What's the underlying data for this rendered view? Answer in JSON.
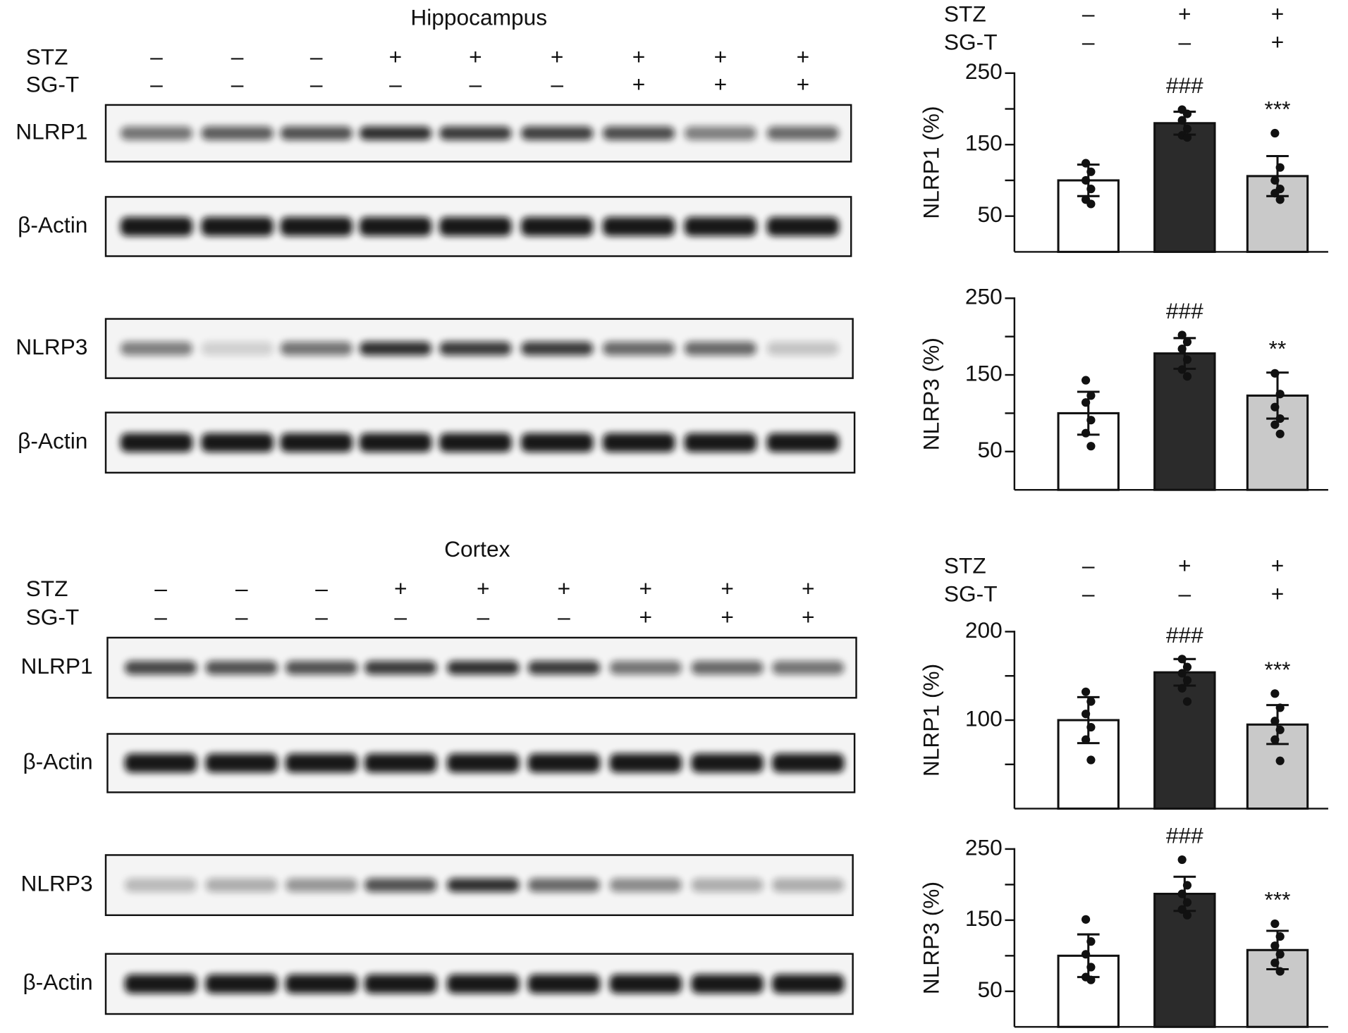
{
  "blots": [
    {
      "title": "Hippocampus",
      "treatments": [
        {
          "label": "STZ",
          "signs": [
            "–",
            "–",
            "–",
            "+",
            "+",
            "+",
            "+",
            "+",
            "+"
          ]
        },
        {
          "label": "SG-T",
          "signs": [
            "–",
            "–",
            "–",
            "–",
            "–",
            "–",
            "+",
            "+",
            "+"
          ]
        }
      ],
      "bands": [
        "NLRP1",
        "β-Actin",
        "NLRP3",
        "β-Actin"
      ]
    },
    {
      "title": "Cortex",
      "treatments": [
        {
          "label": "STZ",
          "signs": [
            "–",
            "–",
            "–",
            "+",
            "+",
            "+",
            "+",
            "+",
            "+"
          ]
        },
        {
          "label": "SG-T",
          "signs": [
            "–",
            "–",
            "–",
            "–",
            "–",
            "–",
            "+",
            "+",
            "+"
          ]
        }
      ],
      "bands": [
        "NLRP1",
        "β-Actin",
        "NLRP3",
        "β-Actin"
      ]
    }
  ],
  "chart_treatments": [
    [
      {
        "label": "STZ",
        "signs": [
          "–",
          "+",
          "+"
        ]
      },
      {
        "label": "SG-T",
        "signs": [
          "–",
          "–",
          "+"
        ]
      }
    ],
    [
      {
        "label": "STZ",
        "signs": [
          "–",
          "+",
          "+"
        ]
      },
      {
        "label": "SG-T",
        "signs": [
          "–",
          "–",
          "+"
        ]
      }
    ]
  ],
  "chart_data": [
    {
      "type": "bar",
      "ylabel": "NLRP1 (%)",
      "ylim": [
        0,
        250
      ],
      "yticks": [
        50,
        150,
        250
      ],
      "yminor": [
        100,
        200
      ],
      "values": [
        100,
        180,
        106
      ],
      "errors": [
        22,
        16,
        28
      ],
      "points": [
        [
          124,
          112,
          100,
          88,
          73,
          67
        ],
        [
          199,
          193,
          184,
          172,
          163,
          160
        ],
        [
          166,
          118,
          100,
          88,
          82,
          73
        ]
      ],
      "annotations": [
        null,
        "###",
        "***"
      ],
      "colors": [
        "#ffffff",
        "#2b2b2b",
        "#c9c9c9"
      ]
    },
    {
      "type": "bar",
      "ylabel": "NLRP3 (%)",
      "ylim": [
        0,
        250
      ],
      "yticks": [
        50,
        150,
        250
      ],
      "yminor": [
        100,
        200
      ],
      "values": [
        100,
        178,
        123
      ],
      "errors": [
        28,
        20,
        30
      ],
      "points": [
        [
          143,
          123,
          114,
          91,
          74,
          57
        ],
        [
          202,
          193,
          184,
          170,
          157,
          148
        ],
        [
          152,
          125,
          108,
          93,
          85,
          73
        ]
      ],
      "annotations": [
        null,
        "###",
        "**"
      ],
      "colors": [
        "#ffffff",
        "#2b2b2b",
        "#c9c9c9"
      ]
    },
    {
      "type": "bar",
      "ylabel": "NLRP1 (%)",
      "ylim": [
        0,
        200
      ],
      "yticks": [
        100,
        200
      ],
      "yminor": [
        50,
        150
      ],
      "values": [
        100,
        154,
        95
      ],
      "errors": [
        26,
        15,
        22
      ],
      "points": [
        [
          132,
          121,
          107,
          92,
          78,
          55
        ],
        [
          169,
          160,
          153,
          145,
          136,
          121
        ],
        [
          130,
          114,
          99,
          89,
          78,
          54
        ]
      ],
      "annotations": [
        null,
        "###",
        "***"
      ],
      "colors": [
        "#ffffff",
        "#2b2b2b",
        "#c9c9c9"
      ]
    },
    {
      "type": "bar",
      "ylabel": "NLRP3 (%)",
      "ylim": [
        0,
        250
      ],
      "yticks": [
        50,
        150,
        250
      ],
      "yminor": [
        100,
        200
      ],
      "values": [
        100,
        187,
        108
      ],
      "errors": [
        30,
        24,
        27
      ],
      "points": [
        [
          151,
          120,
          102,
          84,
          70,
          66
        ],
        [
          235,
          199,
          187,
          175,
          165,
          157
        ],
        [
          145,
          127,
          114,
          102,
          90,
          78
        ]
      ],
      "annotations": [
        null,
        "###",
        "***"
      ],
      "colors": [
        "#ffffff",
        "#2b2b2b",
        "#c9c9c9"
      ]
    }
  ]
}
